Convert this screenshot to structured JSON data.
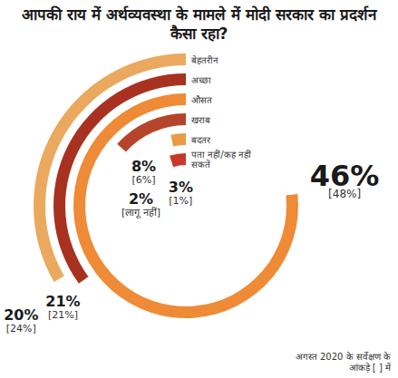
{
  "chart_data": {
    "type": "radial_bar",
    "title": "आपकी राय में अर्थव्यवस्था के मामले में मोदी सरकार का प्रदर्शन कैसा रहा?",
    "categories": [
      "बेहतरीन",
      "अच्छा",
      "औसत",
      "खराब",
      "बदतर",
      "पता नहीं/कह नहीं सकते"
    ],
    "values": [
      20,
      21,
      46,
      8,
      2,
      3
    ],
    "value_labels": [
      "20%",
      "21%",
      "46%",
      "8%",
      "2%",
      "3%"
    ],
    "previous_values": [
      24,
      21,
      48,
      6,
      null,
      1
    ],
    "previous_labels": [
      "[24%]",
      "[21%]",
      "[48%]",
      "[6%]",
      "[लागू नहीं]",
      "[1%]"
    ],
    "colors": [
      "#eaa95e",
      "#a8321f",
      "#ef8a36",
      "#b5452a",
      "#e99a45",
      "#c8382a"
    ],
    "ylim": [
      0,
      50
    ],
    "tick_labels": false,
    "data_labels": true,
    "annotation": "अगस्त 2020 के सर्वेक्षण के आंकड़े [ ] में"
  }
}
